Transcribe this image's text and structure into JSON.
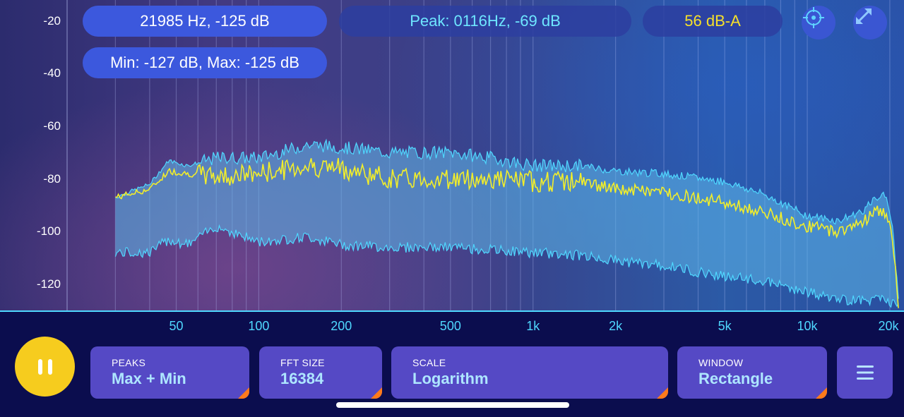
{
  "readouts": {
    "cursor": "21985 Hz, -125 dB",
    "peak": "Peak: 0116Hz, -69 dB",
    "level": "56 dB-A",
    "minmax": "Min: -127 dB, Max: -125 dB"
  },
  "icons": {
    "target": "crosshair-icon",
    "expand": "expand-icon",
    "pause": "pause-icon",
    "menu": "hamburger-menu-icon"
  },
  "colors": {
    "accent_yellow": "#f6cc1e",
    "cyan": "#4fd8ff",
    "trace_yellow": "#f2ee2a",
    "fill_blue": "#5ab8ea",
    "panel_purple": "#5549c5",
    "pill_blue": "#3c58dd"
  },
  "controls": {
    "peaks": {
      "label": "PEAKS",
      "value": "Max + Min"
    },
    "fft": {
      "label": "FFT SIZE",
      "value": "16384"
    },
    "scale": {
      "label": "SCALE",
      "value": "Logarithm"
    },
    "window": {
      "label": "WINDOW",
      "value": "Rectangle"
    }
  },
  "chart_data": {
    "type": "area",
    "x_scale": "log",
    "xlim": [
      20,
      22000
    ],
    "ylim": [
      -130,
      -12
    ],
    "x_ticks": [
      {
        "value": 50,
        "label": "50"
      },
      {
        "value": 100,
        "label": "100"
      },
      {
        "value": 200,
        "label": "200"
      },
      {
        "value": 500,
        "label": "500"
      },
      {
        "value": 1000,
        "label": "1k"
      },
      {
        "value": 2000,
        "label": "2k"
      },
      {
        "value": 5000,
        "label": "5k"
      },
      {
        "value": 10000,
        "label": "10k"
      },
      {
        "value": 20000,
        "label": "20k"
      }
    ],
    "y_ticks": [
      -20,
      -40,
      -60,
      -80,
      -100,
      -120
    ],
    "grid": "vertical lines at log frequency intervals",
    "series": [
      {
        "role": "max",
        "x": [
          30,
          40,
          47,
          55,
          70,
          100,
          150,
          200,
          300,
          500,
          700,
          1000,
          1500,
          2000,
          3000,
          5000,
          7000,
          10000,
          13000,
          16000,
          18000,
          19500,
          20500,
          21500
        ],
        "y": [
          -87,
          -82,
          -73,
          -75,
          -72,
          -72,
          -67,
          -68,
          -70,
          -70,
          -72,
          -75,
          -75,
          -77,
          -78,
          -81,
          -86,
          -94,
          -96,
          -92,
          -87,
          -86,
          -100,
          -125
        ]
      },
      {
        "role": "current",
        "x": [
          30,
          40,
          47,
          55,
          70,
          100,
          150,
          200,
          300,
          500,
          700,
          1000,
          1500,
          2000,
          3000,
          5000,
          7000,
          10000,
          13000,
          16000,
          18000,
          19500,
          20500,
          21500
        ],
        "y": [
          -87,
          -84,
          -77,
          -78,
          -79,
          -78,
          -75,
          -76,
          -80,
          -80,
          -80,
          -81,
          -81,
          -84,
          -85,
          -89,
          -93,
          -98,
          -100,
          -96,
          -92,
          -93,
          -105,
          -127
        ]
      },
      {
        "role": "min",
        "x": [
          30,
          40,
          47,
          55,
          70,
          100,
          150,
          200,
          300,
          500,
          700,
          1000,
          1500,
          2000,
          3000,
          5000,
          7000,
          10000,
          13000,
          16000,
          18000,
          19500,
          20500,
          21500
        ],
        "y": [
          -108,
          -108,
          -103,
          -105,
          -98,
          -104,
          -102,
          -105,
          -106,
          -106,
          -107,
          -108,
          -109,
          -111,
          -113,
          -117,
          -119,
          -123,
          -126,
          -126,
          -126,
          -126,
          -127,
          -128
        ]
      }
    ]
  }
}
